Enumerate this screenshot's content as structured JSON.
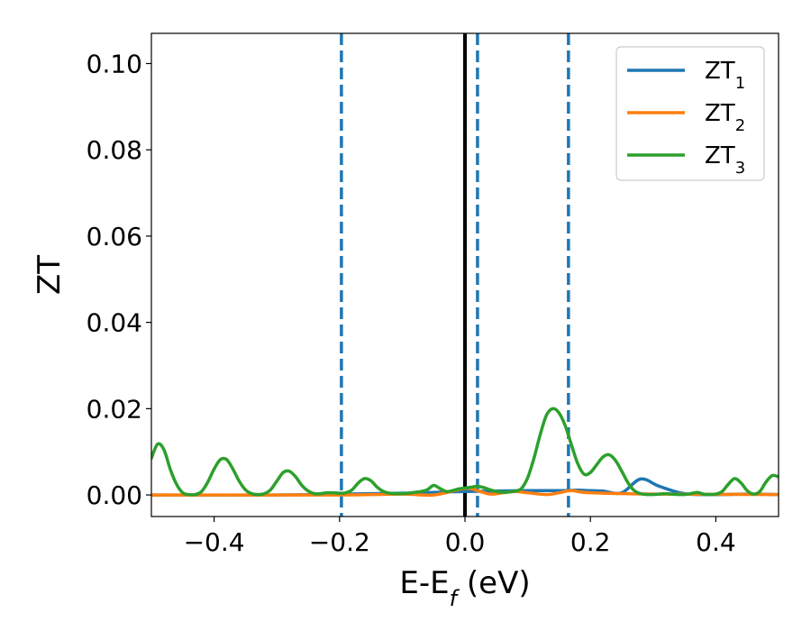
{
  "chart_data": {
    "type": "line",
    "xlabel": "E-E",
    "xlabel_subscript": "f",
    "xlabel_unit": "(eV)",
    "ylabel": "ZT",
    "xlim": [
      -0.5,
      0.5
    ],
    "ylim": [
      -0.005,
      0.107
    ],
    "xticks": [
      -0.4,
      -0.2,
      0.0,
      0.2,
      0.4
    ],
    "xtick_labels": [
      "−0.4",
      "−0.2",
      "0.0",
      "0.2",
      "0.4"
    ],
    "yticks": [
      0.0,
      0.02,
      0.04,
      0.06,
      0.08,
      0.1
    ],
    "ytick_labels": [
      "0.00",
      "0.02",
      "0.04",
      "0.06",
      "0.08",
      "0.10"
    ],
    "grid": false,
    "legend_position": "top-right",
    "reference_lines": {
      "solid": [
        {
          "x": 0.0,
          "color": "#000000"
        }
      ],
      "dashed": [
        {
          "x": -0.197,
          "color": "#1f77b4"
        },
        {
          "x": 0.02,
          "color": "#1f77b4"
        },
        {
          "x": 0.165,
          "color": "#1f77b4"
        }
      ]
    },
    "series": [
      {
        "name": "ZT",
        "name_subscript": "1",
        "color": "#1f77b4",
        "x": [
          -0.5,
          -0.3,
          -0.1,
          0.0,
          0.1,
          0.15,
          0.18,
          0.2,
          0.22,
          0.25,
          0.28,
          0.31,
          0.35,
          0.4,
          0.45,
          0.5
        ],
        "y": [
          0.0,
          0.0,
          0.0004,
          0.0008,
          0.001,
          0.001,
          0.0011,
          0.001,
          0.0009,
          0.0005,
          0.0037,
          0.002,
          0.0003,
          0.0001,
          0.0002,
          0.0001
        ]
      },
      {
        "name": "ZT",
        "name_subscript": "2",
        "color": "#ff7f0e",
        "x": [
          -0.5,
          -0.2,
          -0.1,
          -0.05,
          0.0,
          0.02,
          0.04,
          0.06,
          0.08,
          0.1,
          0.13,
          0.15,
          0.17,
          0.2,
          0.3,
          0.5
        ],
        "y": [
          0.0,
          0.0,
          0.0002,
          0.0,
          0.0015,
          0.001,
          0.0002,
          0.0005,
          0.0008,
          0.0005,
          0.0001,
          0.0005,
          0.001,
          0.0005,
          0.0002,
          0.0001
        ]
      },
      {
        "name": "ZT",
        "name_subscript": "3",
        "color": "#2ca02c",
        "x": [
          -0.5,
          -0.49,
          -0.48,
          -0.47,
          -0.46,
          -0.45,
          -0.44,
          -0.43,
          -0.42,
          -0.41,
          -0.4,
          -0.39,
          -0.38,
          -0.37,
          -0.36,
          -0.35,
          -0.34,
          -0.33,
          -0.32,
          -0.31,
          -0.3,
          -0.29,
          -0.28,
          -0.27,
          -0.26,
          -0.25,
          -0.24,
          -0.23,
          -0.22,
          -0.21,
          -0.2,
          -0.19,
          -0.18,
          -0.17,
          -0.16,
          -0.15,
          -0.14,
          -0.13,
          -0.12,
          -0.11,
          -0.1,
          -0.09,
          -0.08,
          -0.07,
          -0.06,
          -0.05,
          -0.04,
          -0.03,
          -0.02,
          -0.01,
          0.0,
          0.01,
          0.02,
          0.03,
          0.04,
          0.05,
          0.06,
          0.07,
          0.08,
          0.09,
          0.1,
          0.11,
          0.12,
          0.13,
          0.14,
          0.15,
          0.16,
          0.17,
          0.18,
          0.19,
          0.2,
          0.21,
          0.22,
          0.23,
          0.24,
          0.25,
          0.26,
          0.27,
          0.28,
          0.29,
          0.3,
          0.31,
          0.32,
          0.33,
          0.34,
          0.35,
          0.36,
          0.37,
          0.38,
          0.39,
          0.4,
          0.41,
          0.42,
          0.43,
          0.44,
          0.45,
          0.46,
          0.47,
          0.48,
          0.49,
          0.5
        ],
        "y": [
          0.0085,
          0.0118,
          0.0105,
          0.006,
          0.0025,
          0.0005,
          0.0001,
          0.0001,
          0.0008,
          0.003,
          0.006,
          0.0082,
          0.0082,
          0.006,
          0.0032,
          0.0012,
          0.0003,
          0.0001,
          0.0003,
          0.0012,
          0.0032,
          0.0052,
          0.0055,
          0.0042,
          0.0022,
          0.0009,
          0.0003,
          0.0003,
          0.0005,
          0.0005,
          0.0004,
          0.0005,
          0.0012,
          0.0028,
          0.0038,
          0.0033,
          0.0018,
          0.0008,
          0.0004,
          0.0003,
          0.0003,
          0.0004,
          0.0006,
          0.0008,
          0.0012,
          0.0022,
          0.0015,
          0.0008,
          0.001,
          0.0014,
          0.0016,
          0.0018,
          0.002,
          0.0017,
          0.0012,
          0.0008,
          0.0006,
          0.0007,
          0.0009,
          0.0015,
          0.004,
          0.0085,
          0.014,
          0.0185,
          0.02,
          0.019,
          0.016,
          0.0115,
          0.0072,
          0.0048,
          0.0052,
          0.007,
          0.0088,
          0.0093,
          0.008,
          0.0055,
          0.0028,
          0.001,
          0.0003,
          0.0001,
          0.0001,
          0.0002,
          0.0003,
          0.0002,
          0.0001,
          0.0001,
          0.0003,
          0.0006,
          0.0002,
          0.0001,
          0.0002,
          0.0008,
          0.0025,
          0.0038,
          0.0028,
          0.001,
          0.0002,
          0.0008,
          0.003,
          0.0045,
          0.0042
        ]
      }
    ]
  }
}
